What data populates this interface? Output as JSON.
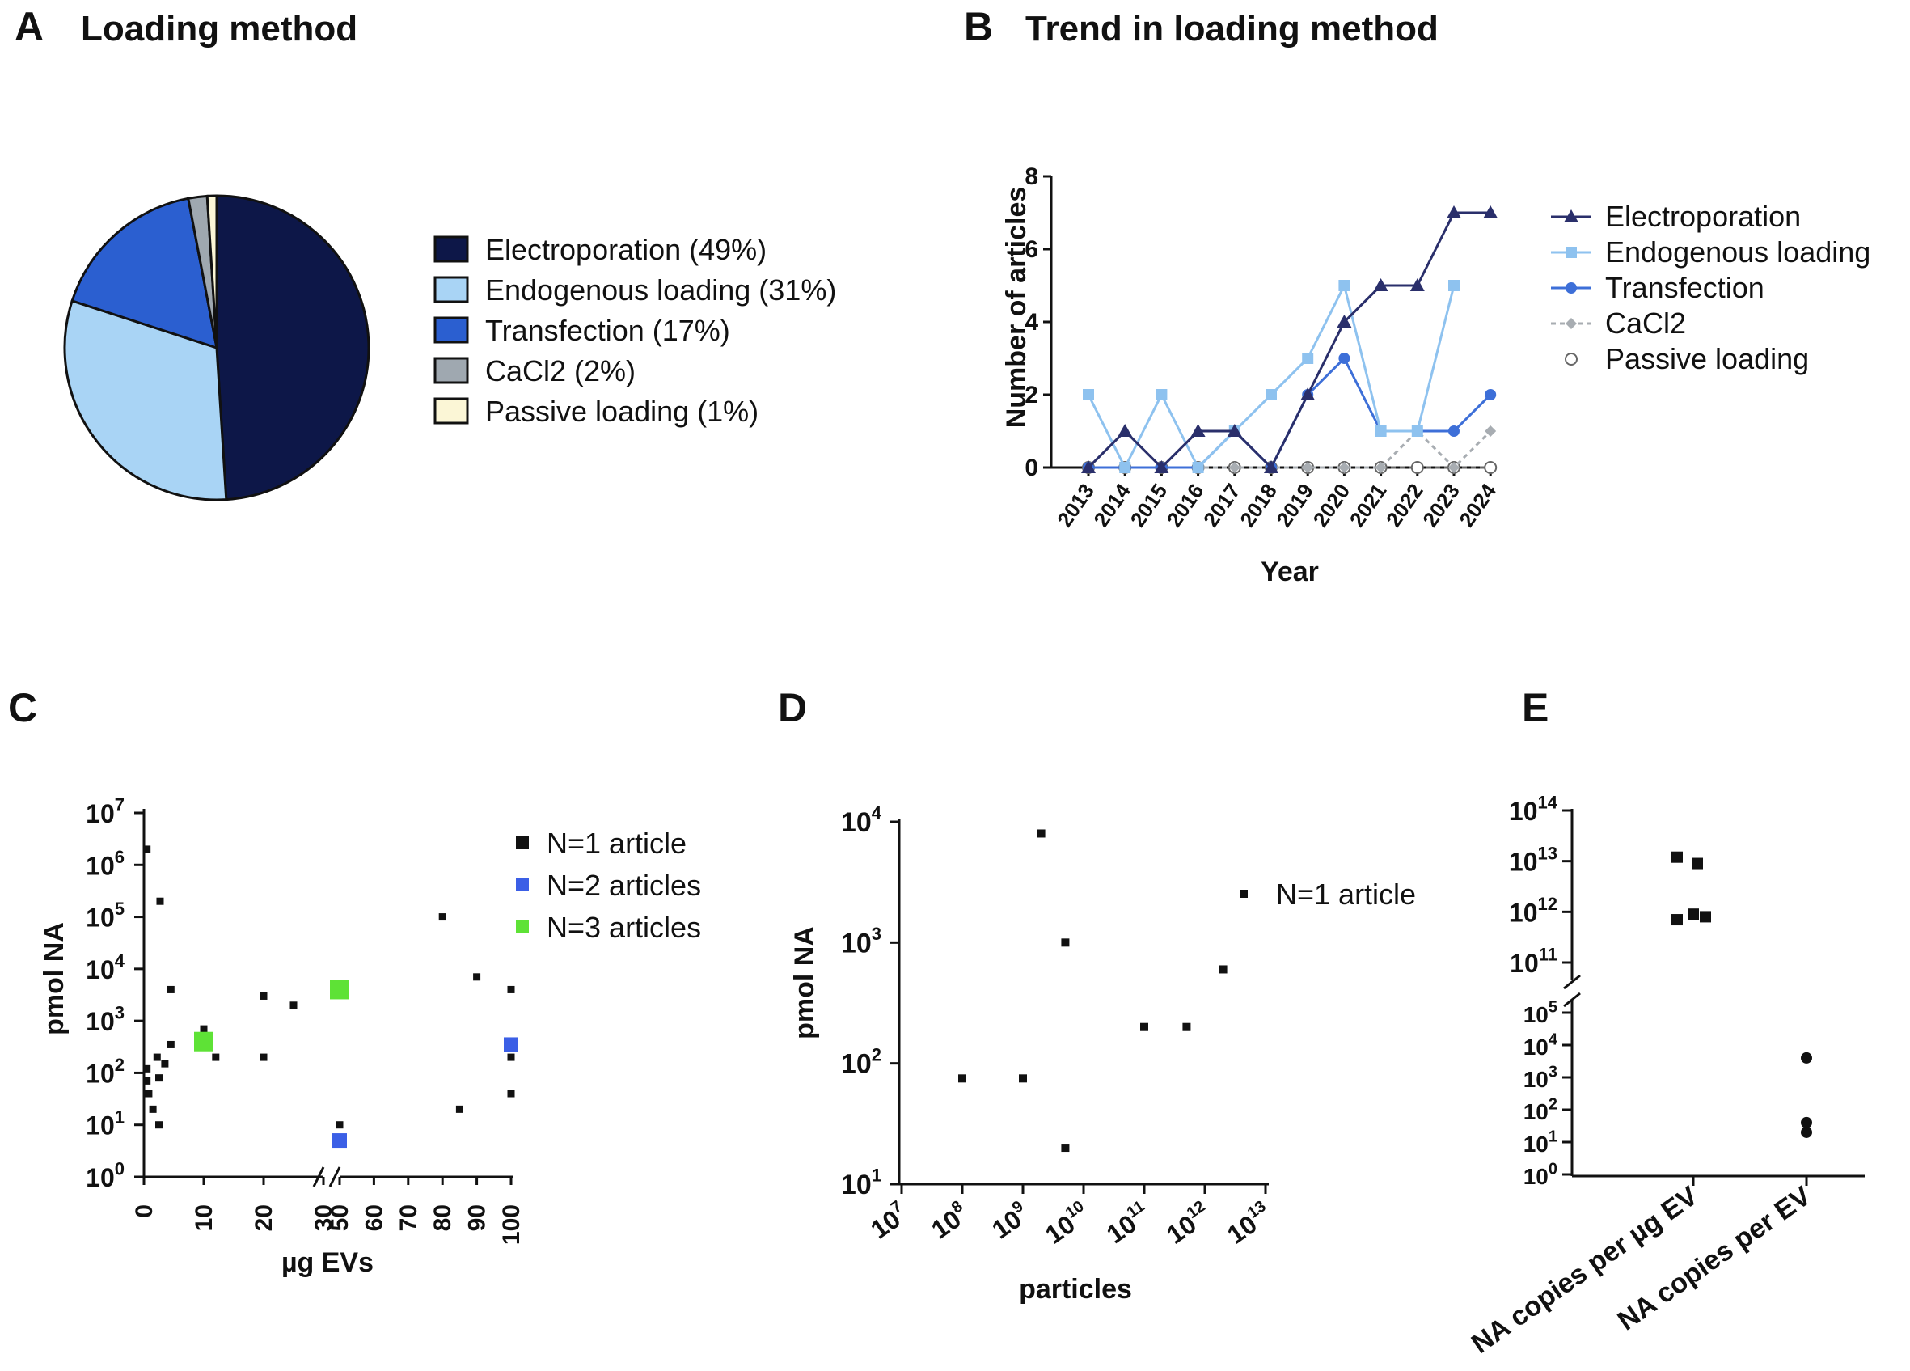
{
  "chart_data": [
    {
      "panel": "A",
      "type": "pie",
      "title": "Loading method",
      "slices": [
        {
          "label": "Electroporation (49%)",
          "value": 49,
          "color": "#0d1748"
        },
        {
          "label": "Endogenous loading (31%)",
          "value": 31,
          "color": "#a9d4f5"
        },
        {
          "label": "Transfection (17%)",
          "value": 17,
          "color": "#2b5fd0"
        },
        {
          "label": "CaCl2 (2%)",
          "value": 2,
          "color": "#9fa8b0"
        },
        {
          "label": "Passive loading (1%)",
          "value": 1,
          "color": "#fbf6d6"
        }
      ]
    },
    {
      "panel": "B",
      "type": "line",
      "title": "Trend in loading method",
      "xlabel": "Year",
      "ylabel": "Number of articles",
      "ylim": [
        0,
        8
      ],
      "yticks": [
        "0",
        "2",
        "4",
        "6",
        "8"
      ],
      "categories": [
        "2013",
        "2014",
        "2015",
        "2016",
        "2017",
        "2018",
        "2019",
        "2020",
        "2021",
        "2022",
        "2023",
        "2024"
      ],
      "series": [
        {
          "name": "Electroporation",
          "color": "#2a2f6b",
          "marker": "triangle",
          "values": [
            0,
            1,
            0,
            1,
            1,
            0,
            2,
            4,
            5,
            5,
            7,
            7
          ]
        },
        {
          "name": "Endogenous loading",
          "color": "#8ec2ef",
          "marker": "square",
          "values": [
            2,
            0,
            2,
            0,
            1,
            2,
            3,
            5,
            1,
            1,
            5,
            null
          ]
        },
        {
          "name": "Transfection",
          "color": "#3d6fd8",
          "marker": "circle",
          "values": [
            0,
            0,
            0,
            0,
            1,
            0,
            2,
            3,
            1,
            1,
            1,
            2
          ]
        },
        {
          "name": "CaCl2",
          "color": "#a8adb2",
          "marker": "diamond",
          "values": [
            0,
            0,
            0,
            0,
            0,
            0,
            0,
            0,
            0,
            1,
            0,
            1
          ]
        },
        {
          "name": "Passive loading",
          "color": "#666666",
          "marker": "open-circle",
          "values": [
            0,
            0,
            0,
            0,
            0,
            0,
            0,
            0,
            0,
            0,
            0,
            0
          ]
        }
      ]
    },
    {
      "panel": "C",
      "type": "scatter",
      "xlabel": "µg EVs",
      "ylabel": "pmol NA",
      "xticks_left": [
        "0",
        "10",
        "20",
        "30"
      ],
      "xticks_right": [
        "50",
        "60",
        "70",
        "80",
        "90",
        "100"
      ],
      "yticks": [
        {
          "base": "10",
          "exp": "0"
        },
        {
          "base": "10",
          "exp": "1"
        },
        {
          "base": "10",
          "exp": "2"
        },
        {
          "base": "10",
          "exp": "3"
        },
        {
          "base": "10",
          "exp": "4"
        },
        {
          "base": "10",
          "exp": "5"
        },
        {
          "base": "10",
          "exp": "6"
        },
        {
          "base": "10",
          "exp": "7"
        }
      ],
      "legend": [
        {
          "label": "N=1 article",
          "color": "#111111"
        },
        {
          "label": "N=2 articles",
          "color": "#3b5fe6"
        },
        {
          "label": "N=3 articles",
          "color": "#5ee236"
        }
      ],
      "points": [
        {
          "x": 0.5,
          "y": 2000000,
          "n": 1
        },
        {
          "x": 2.7,
          "y": 200000,
          "n": 1
        },
        {
          "x": 0.5,
          "y": 120,
          "n": 1
        },
        {
          "x": 0.5,
          "y": 70,
          "n": 1
        },
        {
          "x": 0.8,
          "y": 40,
          "n": 1
        },
        {
          "x": 1.5,
          "y": 20,
          "n": 1
        },
        {
          "x": 2.5,
          "y": 10,
          "n": 1
        },
        {
          "x": 2.2,
          "y": 200,
          "n": 1
        },
        {
          "x": 2.5,
          "y": 80,
          "n": 1
        },
        {
          "x": 3.5,
          "y": 150,
          "n": 1
        },
        {
          "x": 4.5,
          "y": 4000,
          "n": 1
        },
        {
          "x": 4.5,
          "y": 350,
          "n": 1
        },
        {
          "x": 10,
          "y": 700,
          "n": 1
        },
        {
          "x": 12,
          "y": 200,
          "n": 1
        },
        {
          "x": 20,
          "y": 3000,
          "n": 1
        },
        {
          "x": 20,
          "y": 200,
          "n": 1
        },
        {
          "x": 25,
          "y": 2000,
          "n": 1
        },
        {
          "x": 50,
          "y": 10,
          "n": 1
        },
        {
          "x": 80,
          "y": 100000,
          "n": 1
        },
        {
          "x": 85,
          "y": 20,
          "n": 1
        },
        {
          "x": 90,
          "y": 7000,
          "n": 1
        },
        {
          "x": 100,
          "y": 4000,
          "n": 1
        },
        {
          "x": 100,
          "y": 200,
          "n": 1
        },
        {
          "x": 100,
          "y": 40,
          "n": 1
        },
        {
          "x": 50,
          "y": 5,
          "n": 2
        },
        {
          "x": 100,
          "y": 350,
          "n": 2
        },
        {
          "x": 10,
          "y": 400,
          "n": 3
        },
        {
          "x": 50,
          "y": 4000,
          "n": 3
        }
      ]
    },
    {
      "panel": "D",
      "type": "scatter",
      "xlabel": "particles",
      "ylabel": "pmol NA",
      "xticks": [
        {
          "base": "10",
          "exp": "7"
        },
        {
          "base": "10",
          "exp": "8"
        },
        {
          "base": "10",
          "exp": "9"
        },
        {
          "base": "10",
          "exp": "10"
        },
        {
          "base": "10",
          "exp": "11"
        },
        {
          "base": "10",
          "exp": "12"
        },
        {
          "base": "10",
          "exp": "13"
        }
      ],
      "yticks": [
        {
          "base": "10",
          "exp": "1"
        },
        {
          "base": "10",
          "exp": "2"
        },
        {
          "base": "10",
          "exp": "3"
        },
        {
          "base": "10",
          "exp": "4"
        }
      ],
      "legend": [
        {
          "label": "N=1 article",
          "color": "#111111"
        }
      ],
      "points": [
        {
          "x": 100000000,
          "y": 75
        },
        {
          "x": 1000000000,
          "y": 75
        },
        {
          "x": 2000000000,
          "y": 8000
        },
        {
          "x": 5000000000,
          "y": 1000
        },
        {
          "x": 5000000000,
          "y": 20
        },
        {
          "x": 100000000000,
          "y": 200
        },
        {
          "x": 500000000000,
          "y": 200
        },
        {
          "x": 2000000000000,
          "y": 600
        }
      ]
    },
    {
      "panel": "E",
      "type": "scatter",
      "categories": [
        "NA copies per µg EV",
        "NA copies per EV"
      ],
      "yticks_lower": [
        {
          "base": "10",
          "exp": "0"
        },
        {
          "base": "10",
          "exp": "1"
        },
        {
          "base": "10",
          "exp": "2"
        },
        {
          "base": "10",
          "exp": "3"
        },
        {
          "base": "10",
          "exp": "4"
        },
        {
          "base": "10",
          "exp": "5"
        }
      ],
      "yticks_upper": [
        {
          "base": "10",
          "exp": "11"
        },
        {
          "base": "10",
          "exp": "12"
        },
        {
          "base": "10",
          "exp": "13"
        },
        {
          "base": "10",
          "exp": "14"
        }
      ],
      "points": [
        {
          "category": 0,
          "y": 12000000000000,
          "offset": -0.4
        },
        {
          "category": 0,
          "y": 9000000000000,
          "offset": 0.1
        },
        {
          "category": 0,
          "y": 700000000000,
          "offset": -0.4
        },
        {
          "category": 0,
          "y": 900000000000,
          "offset": 0
        },
        {
          "category": 0,
          "y": 800000000000,
          "offset": 0.3
        },
        {
          "category": 1,
          "y": 4000,
          "offset": 0
        },
        {
          "category": 1,
          "y": 40,
          "offset": 0
        },
        {
          "category": 1,
          "y": 20,
          "offset": 0
        }
      ]
    }
  ],
  "panels": {
    "A": {
      "letter": "A"
    },
    "B": {
      "letter": "B"
    },
    "C": {
      "letter": "C"
    },
    "D": {
      "letter": "D"
    },
    "E": {
      "letter": "E"
    }
  }
}
